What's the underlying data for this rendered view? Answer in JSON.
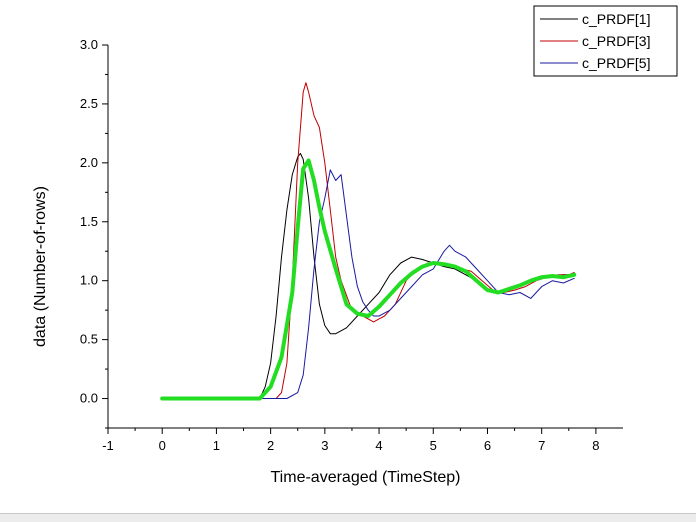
{
  "chart_data": {
    "type": "line",
    "title": "",
    "xlabel": "Time-averaged (TimeStep)",
    "ylabel": "data (Number-of-rows)",
    "xlim": [
      -1,
      8.5
    ],
    "ylim": [
      -0.25,
      3.0
    ],
    "xticks": [
      -1,
      0,
      1,
      2,
      3,
      4,
      5,
      6,
      7,
      8
    ],
    "yticks": [
      0.0,
      0.5,
      1.0,
      1.5,
      2.0,
      2.5,
      3.0
    ],
    "ytick_labels": [
      "0.0",
      "0.5",
      "1.0",
      "1.5",
      "2.0",
      "2.5",
      "3.0"
    ],
    "grid": false,
    "legend_position": "top-right",
    "series": [
      {
        "name": "c_PRDF[1]",
        "color": "#000000",
        "x": [
          0,
          1.8,
          1.9,
          2.0,
          2.1,
          2.2,
          2.3,
          2.4,
          2.5,
          2.55,
          2.6,
          2.7,
          2.8,
          2.9,
          3.0,
          3.1,
          3.2,
          3.4,
          3.6,
          3.8,
          4.0,
          4.2,
          4.4,
          4.6,
          4.8,
          5.0,
          5.2,
          5.4,
          5.6,
          5.8,
          6.0,
          6.2,
          6.4,
          6.6,
          6.8,
          7.0,
          7.2,
          7.4,
          7.6
        ],
        "y": [
          0,
          0,
          0.1,
          0.3,
          0.7,
          1.2,
          1.6,
          1.9,
          2.05,
          2.08,
          2.03,
          1.7,
          1.2,
          0.8,
          0.62,
          0.55,
          0.55,
          0.6,
          0.7,
          0.8,
          0.9,
          1.05,
          1.15,
          1.2,
          1.18,
          1.15,
          1.12,
          1.1,
          1.05,
          1.0,
          0.92,
          0.9,
          0.92,
          0.95,
          1.0,
          1.02,
          1.03,
          1.05,
          1.05
        ]
      },
      {
        "name": "c_PRDF[3]",
        "color": "#c00000",
        "x": [
          0,
          2.1,
          2.2,
          2.3,
          2.4,
          2.5,
          2.6,
          2.65,
          2.7,
          2.8,
          2.9,
          3.0,
          3.1,
          3.2,
          3.3,
          3.5,
          3.7,
          3.9,
          4.1,
          4.3,
          4.5,
          4.7,
          4.9,
          5.1,
          5.3,
          5.5,
          5.7,
          5.9,
          6.1,
          6.3,
          6.5,
          6.7,
          6.9,
          7.1,
          7.3,
          7.5,
          7.6
        ],
        "y": [
          0,
          0,
          0.05,
          0.3,
          1.0,
          2.0,
          2.6,
          2.68,
          2.6,
          2.4,
          2.3,
          2.0,
          1.6,
          1.2,
          1.0,
          0.75,
          0.7,
          0.65,
          0.7,
          0.8,
          1.0,
          1.1,
          1.15,
          1.15,
          1.12,
          1.1,
          1.08,
          1.0,
          0.92,
          0.9,
          0.92,
          0.95,
          1.0,
          1.03,
          1.05,
          1.05,
          1.07
        ]
      },
      {
        "name": "c_PRDF[5]",
        "color": "#1a1aa0",
        "x": [
          0,
          2.3,
          2.5,
          2.6,
          2.7,
          2.8,
          2.9,
          3.0,
          3.1,
          3.2,
          3.3,
          3.4,
          3.5,
          3.6,
          3.7,
          3.8,
          3.9,
          4.0,
          4.2,
          4.4,
          4.6,
          4.8,
          5.0,
          5.2,
          5.3,
          5.4,
          5.6,
          5.8,
          6.0,
          6.2,
          6.4,
          6.6,
          6.8,
          7.0,
          7.2,
          7.4,
          7.6
        ],
        "y": [
          0,
          0,
          0.05,
          0.2,
          0.6,
          1.1,
          1.5,
          1.7,
          1.94,
          1.85,
          1.9,
          1.55,
          1.2,
          0.95,
          0.82,
          0.75,
          0.7,
          0.7,
          0.75,
          0.85,
          0.95,
          1.05,
          1.1,
          1.25,
          1.3,
          1.25,
          1.2,
          1.1,
          1.0,
          0.9,
          0.88,
          0.9,
          0.85,
          0.95,
          1.0,
          0.98,
          1.02
        ]
      },
      {
        "name": "",
        "color": "#22dd22",
        "x": [
          0,
          1.8,
          2.0,
          2.2,
          2.4,
          2.5,
          2.6,
          2.7,
          2.8,
          2.9,
          3.0,
          3.2,
          3.4,
          3.6,
          3.8,
          4.0,
          4.2,
          4.4,
          4.6,
          4.8,
          5.0,
          5.2,
          5.4,
          5.6,
          5.8,
          6.0,
          6.2,
          6.4,
          6.6,
          6.8,
          7.0,
          7.2,
          7.4,
          7.6
        ],
        "y": [
          0,
          0,
          0.1,
          0.35,
          0.9,
          1.45,
          1.95,
          2.02,
          1.85,
          1.62,
          1.42,
          1.1,
          0.8,
          0.72,
          0.7,
          0.78,
          0.88,
          0.98,
          1.06,
          1.12,
          1.15,
          1.14,
          1.12,
          1.08,
          1.0,
          0.92,
          0.9,
          0.93,
          0.96,
          1.0,
          1.03,
          1.04,
          1.03,
          1.05
        ]
      }
    ]
  }
}
